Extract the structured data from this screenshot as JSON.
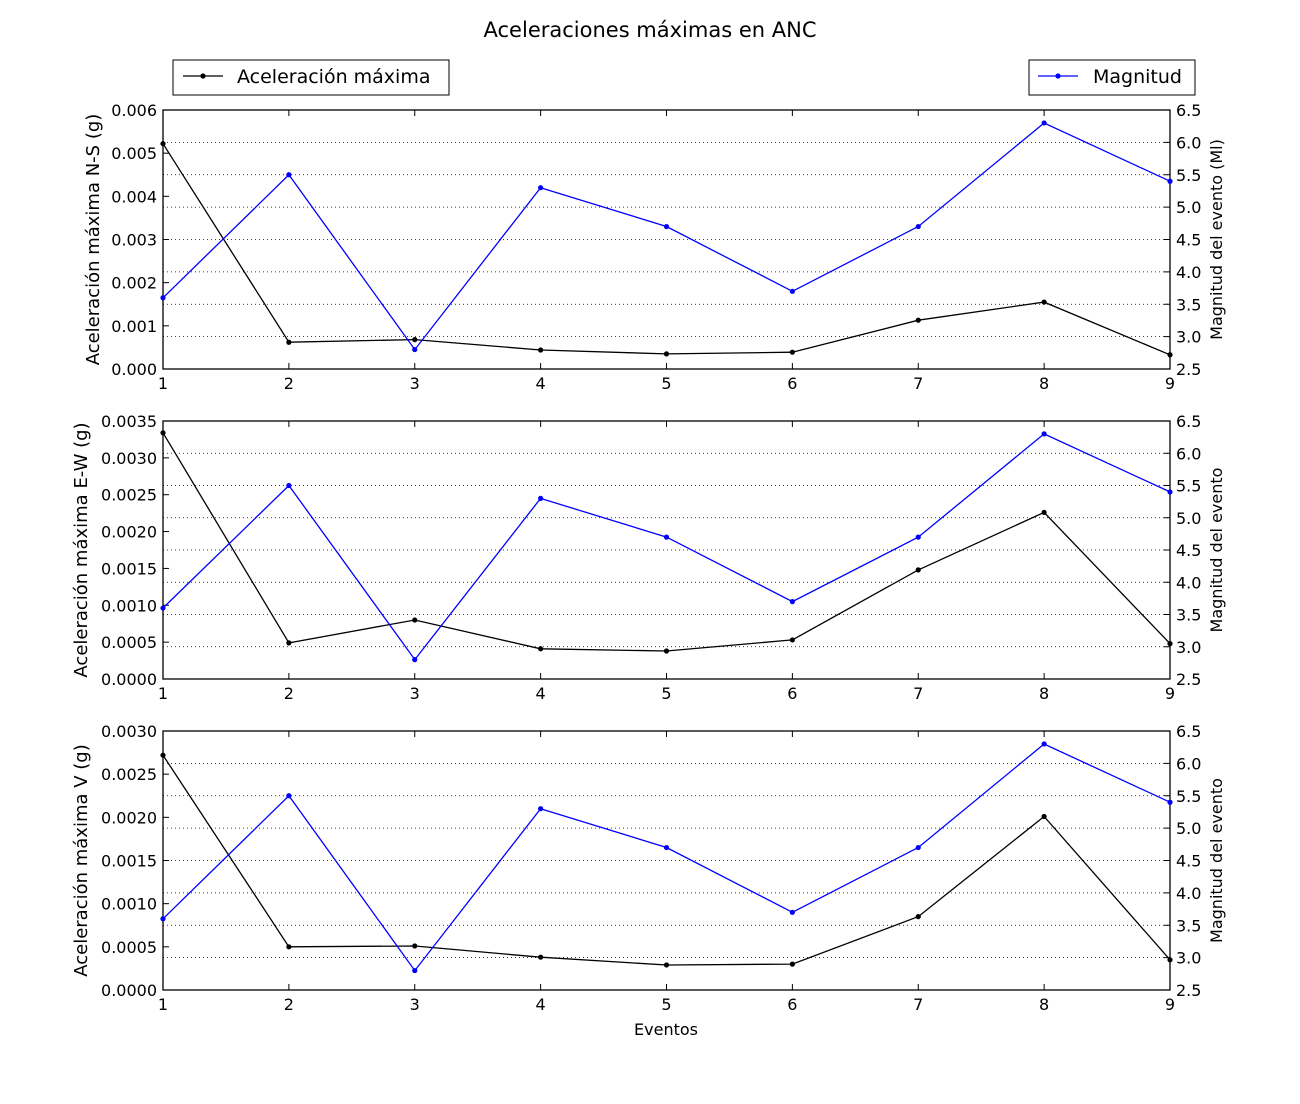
{
  "chart_data": {
    "type": "line",
    "title": "Aceleraciones máximas en ANC",
    "xlabel": "Eventos",
    "x": [
      1,
      2,
      3,
      4,
      5,
      6,
      7,
      8,
      9
    ],
    "xlim": [
      1,
      9
    ],
    "xticks": [
      "1",
      "2",
      "3",
      "4",
      "5",
      "6",
      "7",
      "8",
      "9"
    ],
    "legend": {
      "left": {
        "label": "Aceleración máxima",
        "color": "#000000",
        "placement": "top-left"
      },
      "right": {
        "label": "Magnitud",
        "color": "#0000ff",
        "placement": "top-right"
      }
    },
    "grid": "horizontal dotted (right axis)",
    "panels": [
      {
        "ylabel_left": "Aceleración máxima N-S (g)",
        "ylabel_right": "Magnitud del evento (Ml)",
        "ylim_left": [
          0,
          0.006
        ],
        "yticks_left": [
          "0.000",
          "0.001",
          "0.002",
          "0.003",
          "0.004",
          "0.005",
          "0.006"
        ],
        "ylim_right": [
          2.5,
          6.5
        ],
        "yticks_right": [
          "2.5",
          "3.0",
          "3.5",
          "4.0",
          "4.5",
          "5.0",
          "5.5",
          "6.0",
          "6.5"
        ],
        "series": [
          {
            "name": "Aceleración máxima",
            "axis": "left",
            "color": "#000000",
            "values": [
              0.00522,
              0.00062,
              0.00068,
              0.00044,
              0.00035,
              0.00039,
              0.00113,
              0.00155,
              0.00033
            ]
          },
          {
            "name": "Magnitud",
            "axis": "right",
            "color": "#0000ff",
            "values": [
              3.6,
              5.5,
              2.8,
              5.3,
              4.7,
              3.7,
              4.7,
              6.3,
              5.4
            ]
          }
        ]
      },
      {
        "ylabel_left": "Aceleración máxima E-W (g)",
        "ylabel_right": "Magnitud del evento",
        "ylim_left": [
          0,
          0.0035
        ],
        "yticks_left": [
          "0.0000",
          "0.0005",
          "0.0010",
          "0.0015",
          "0.0020",
          "0.0025",
          "0.0030",
          "0.0035"
        ],
        "ylim_right": [
          2.5,
          6.5
        ],
        "yticks_right": [
          "2.5",
          "3.0",
          "3.5",
          "4.0",
          "4.5",
          "5.0",
          "5.5",
          "6.0",
          "6.5"
        ],
        "series": [
          {
            "name": "Aceleración máxima",
            "axis": "left",
            "color": "#000000",
            "values": [
              0.00334,
              0.00049,
              0.0008,
              0.00041,
              0.00038,
              0.00053,
              0.00148,
              0.00226,
              0.00048
            ]
          },
          {
            "name": "Magnitud",
            "axis": "right",
            "color": "#0000ff",
            "values": [
              3.6,
              5.5,
              2.8,
              5.3,
              4.7,
              3.7,
              4.7,
              6.3,
              5.4
            ]
          }
        ]
      },
      {
        "ylabel_left": "Aceleración máxima V (g)",
        "ylabel_right": "Magnitud del evento",
        "ylim_left": [
          0,
          0.003
        ],
        "yticks_left": [
          "0.0000",
          "0.0005",
          "0.0010",
          "0.0015",
          "0.0020",
          "0.0025",
          "0.0030"
        ],
        "ylim_right": [
          2.5,
          6.5
        ],
        "yticks_right": [
          "2.5",
          "3.0",
          "3.5",
          "4.0",
          "4.5",
          "5.0",
          "5.5",
          "6.0",
          "6.5"
        ],
        "series": [
          {
            "name": "Aceleración máxima",
            "axis": "left",
            "color": "#000000",
            "values": [
              0.00272,
              0.0005,
              0.00051,
              0.00038,
              0.00029,
              0.0003,
              0.00085,
              0.00201,
              0.00035
            ]
          },
          {
            "name": "Magnitud",
            "axis": "right",
            "color": "#0000ff",
            "values": [
              3.6,
              5.5,
              2.8,
              5.3,
              4.7,
              3.7,
              4.7,
              6.3,
              5.4
            ]
          }
        ]
      }
    ]
  }
}
